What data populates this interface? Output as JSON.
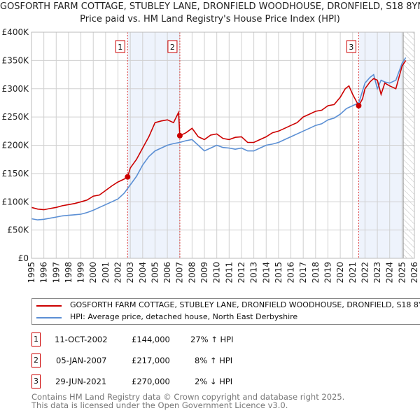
{
  "chart_data": {
    "type": "line",
    "title": "GOSFORTH FARM COTTAGE, STUBLEY LANE, DRONFIELD WOODHOUSE, DRONFIELD, S18 8YN",
    "subtitle": "Price paid vs. HM Land Registry's House Price Index (HPI)",
    "xlim": [
      1995,
      2026
    ],
    "ylim": [
      0,
      400000
    ],
    "x_ticks": [
      "1995",
      "1996",
      "1997",
      "1998",
      "1999",
      "2000",
      "2001",
      "2002",
      "2003",
      "2004",
      "2005",
      "2006",
      "2007",
      "2008",
      "2009",
      "2010",
      "2011",
      "2012",
      "2013",
      "2014",
      "2015",
      "2016",
      "2017",
      "2018",
      "2019",
      "2020",
      "2021",
      "2022",
      "2023",
      "2024",
      "2025",
      "2026"
    ],
    "y_ticks": [
      {
        "value": 0,
        "label": "£0"
      },
      {
        "value": 50000,
        "label": "£50K"
      },
      {
        "value": 100000,
        "label": "£100K"
      },
      {
        "value": 150000,
        "label": "£150K"
      },
      {
        "value": 200000,
        "label": "£200K"
      },
      {
        "value": 250000,
        "label": "£250K"
      },
      {
        "value": 300000,
        "label": "£300K"
      },
      {
        "value": 350000,
        "label": "£350K"
      },
      {
        "value": 400000,
        "label": "£400K"
      }
    ],
    "grid": true,
    "shaded_ranges": [
      [
        2002.78,
        2007.01
      ],
      [
        2021.49,
        2025.1
      ]
    ],
    "future_hatch_from": 2025.1,
    "series": [
      {
        "name": "GOSFORTH FARM COTTAGE, STUBLEY LANE, DRONFIELD WOODHOUSE, DRONFIELD, S18 8YN (detached house)",
        "color": "#cc0000",
        "x": [
          1995,
          1995.5,
          1996,
          1996.5,
          1997,
          1997.5,
          1998,
          1998.5,
          1999,
          1999.5,
          2000,
          2000.5,
          2001,
          2001.5,
          2002,
          2002.5,
          2002.78,
          2003,
          2003.5,
          2004,
          2004.5,
          2005,
          2005.5,
          2006,
          2006.5,
          2006.9,
          2007.01,
          2007.5,
          2008,
          2008.5,
          2009,
          2009.5,
          2010,
          2010.5,
          2011,
          2011.5,
          2012,
          2012.5,
          2013,
          2013.5,
          2014,
          2014.5,
          2015,
          2015.5,
          2016,
          2016.5,
          2017,
          2017.5,
          2018,
          2018.5,
          2019,
          2019.5,
          2020,
          2020.4,
          2020.7,
          2021,
          2021.49,
          2021.8,
          2022,
          2022.4,
          2022.7,
          2023,
          2023.3,
          2023.6,
          2024,
          2024.5,
          2025,
          2025.3
        ],
        "y": [
          90000,
          87000,
          86000,
          88000,
          90000,
          93000,
          95000,
          97000,
          100000,
          103000,
          110000,
          112000,
          120000,
          128000,
          135000,
          140000,
          144000,
          160000,
          175000,
          195000,
          215000,
          240000,
          243000,
          245000,
          240000,
          258000,
          217000,
          222000,
          230000,
          215000,
          210000,
          218000,
          220000,
          212000,
          210000,
          214000,
          215000,
          205000,
          205000,
          210000,
          215000,
          222000,
          225000,
          230000,
          235000,
          240000,
          250000,
          255000,
          260000,
          262000,
          270000,
          272000,
          285000,
          300000,
          305000,
          290000,
          270000,
          282000,
          300000,
          312000,
          318000,
          315000,
          290000,
          310000,
          305000,
          300000,
          340000,
          350000
        ]
      },
      {
        "name": "HPI: Average price, detached house, North East Derbyshire",
        "color": "#5b8fd4",
        "x": [
          1995,
          1995.5,
          1996,
          1996.5,
          1997,
          1997.5,
          1998,
          1998.5,
          1999,
          1999.5,
          2000,
          2000.5,
          2001,
          2001.5,
          2002,
          2002.5,
          2003,
          2003.5,
          2004,
          2004.5,
          2005,
          2005.5,
          2006,
          2006.5,
          2007,
          2007.5,
          2008,
          2008.5,
          2009,
          2009.5,
          2010,
          2010.5,
          2011,
          2011.5,
          2012,
          2012.5,
          2013,
          2013.5,
          2014,
          2014.5,
          2015,
          2015.5,
          2016,
          2016.5,
          2017,
          2017.5,
          2018,
          2018.5,
          2019,
          2019.5,
          2020,
          2020.5,
          2021,
          2021.5,
          2022,
          2022.4,
          2022.7,
          2023,
          2023.3,
          2023.6,
          2024,
          2024.5,
          2025,
          2025.3
        ],
        "y": [
          70000,
          68000,
          69000,
          71000,
          73000,
          75000,
          76000,
          77000,
          78000,
          81000,
          85000,
          90000,
          95000,
          100000,
          105000,
          115000,
          130000,
          145000,
          165000,
          180000,
          190000,
          195000,
          200000,
          203000,
          205000,
          208000,
          210000,
          200000,
          190000,
          195000,
          200000,
          196000,
          195000,
          193000,
          195000,
          190000,
          190000,
          195000,
          200000,
          202000,
          205000,
          210000,
          215000,
          220000,
          225000,
          230000,
          235000,
          238000,
          245000,
          248000,
          255000,
          265000,
          270000,
          275000,
          310000,
          320000,
          325000,
          300000,
          315000,
          312000,
          310000,
          315000,
          345000,
          355000
        ]
      }
    ],
    "markers": [
      {
        "label": "1",
        "x": 2002.78,
        "y": 144000
      },
      {
        "label": "2",
        "x": 2007.01,
        "y": 217000
      },
      {
        "label": "3",
        "x": 2021.49,
        "y": 270000
      }
    ]
  },
  "legend": {
    "property": "GOSFORTH FARM COTTAGE, STUBLEY LANE, DRONFIELD WOODHOUSE, DRONFIELD, S18 8YN (detached house)",
    "hpi": "HPI: Average price, detached house, North East Derbyshire"
  },
  "transactions": [
    {
      "num": "1",
      "date": "11-OCT-2002",
      "price": "£144,000",
      "delta": "27% ↑ HPI"
    },
    {
      "num": "2",
      "date": "05-JAN-2007",
      "price": "£217,000",
      "delta": "8% ↑ HPI"
    },
    {
      "num": "3",
      "date": "29-JUN-2021",
      "price": "£270,000",
      "delta": "2% ↓ HPI"
    }
  ],
  "footer": {
    "line1": "Contains HM Land Registry data © Crown copyright and database right 2025.",
    "line2": "This data is licensed under the Open Government Licence v3.0."
  }
}
